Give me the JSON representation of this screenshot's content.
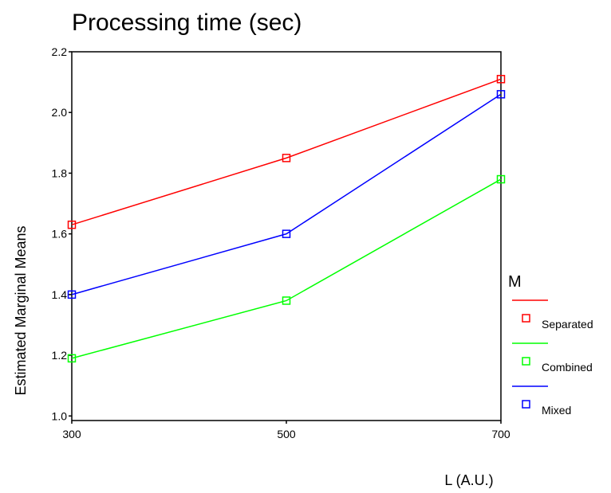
{
  "chart_data": {
    "type": "line",
    "title": "Processing time (sec)",
    "xlabel": "L (A.U.)",
    "ylabel": "Estimated Marginal Means",
    "x": [
      300,
      500,
      700
    ],
    "x_tick_labels": [
      "300",
      "500",
      "700"
    ],
    "xlim": [
      300,
      700
    ],
    "ylim": [
      0.985,
      2.2
    ],
    "y_ticks": [
      1.0,
      1.2,
      1.4,
      1.6,
      1.8,
      2.0,
      2.2
    ],
    "y_tick_labels": [
      "1.0",
      "1.2",
      "1.4",
      "1.6",
      "1.8",
      "2.0",
      "2.2"
    ],
    "grid": false,
    "legend": {
      "title": "M",
      "placement": "right"
    },
    "series": [
      {
        "name": "Separated",
        "color": "#ff0000",
        "marker": "square",
        "values": [
          1.63,
          1.85,
          2.11
        ]
      },
      {
        "name": "Combined",
        "color": "#00ff00",
        "marker": "square",
        "values": [
          1.19,
          1.38,
          1.78
        ]
      },
      {
        "name": "Mixed",
        "color": "#0000ff",
        "marker": "square",
        "values": [
          1.4,
          1.6,
          2.06
        ]
      }
    ]
  }
}
